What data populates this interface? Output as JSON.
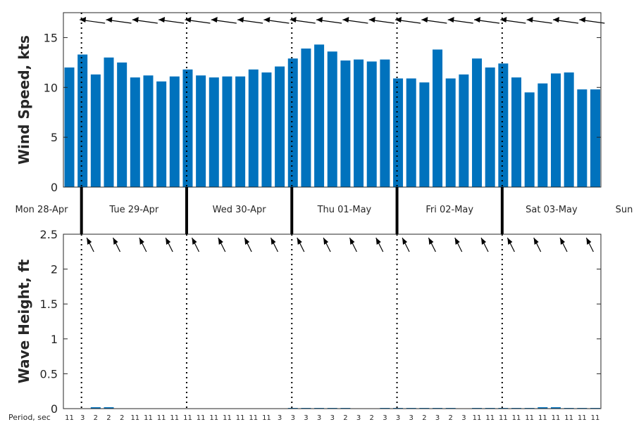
{
  "chart_data": [
    {
      "type": "bar",
      "panel": "wind",
      "ylabel": "Wind Speed, kts",
      "ylim": [
        0,
        17.5
      ],
      "yticks": [
        0,
        5,
        10,
        15
      ],
      "bar_color": "#0072BD",
      "values": [
        12.0,
        13.3,
        11.3,
        13.0,
        12.5,
        11.0,
        11.2,
        10.6,
        11.1,
        11.8,
        11.2,
        11.0,
        11.1,
        11.1,
        11.8,
        11.5,
        12.1,
        12.9,
        13.9,
        14.3,
        13.6,
        12.7,
        12.8,
        12.6,
        12.8,
        10.9,
        10.9,
        10.5,
        13.8,
        10.9,
        11.3,
        12.9,
        12.0,
        12.4,
        11.0,
        9.5,
        10.4,
        11.4,
        11.5,
        9.8,
        9.8
      ],
      "direction_arrows": "wind-direction-arrows"
    },
    {
      "type": "bar",
      "panel": "waves",
      "ylabel": "Wave Height, ft",
      "ylim": [
        0,
        2.5
      ],
      "yticks": [
        "0",
        "0.5",
        "1",
        "1.5",
        "2",
        "2.5"
      ],
      "bar_color": "#0072BD",
      "values": [
        0,
        0,
        0.02,
        0.02,
        0,
        0,
        0,
        0,
        0,
        0,
        0,
        0,
        0,
        0,
        0,
        0,
        0,
        0.01,
        0.01,
        0.01,
        0.01,
        0.01,
        0,
        0,
        0.01,
        0.01,
        0.01,
        0.01,
        0.01,
        0.01,
        0,
        0.01,
        0.01,
        0.01,
        0.01,
        0.01,
        0.02,
        0.02,
        0.01,
        0.01,
        0.01
      ],
      "period_label": "Period, sec",
      "periods": [
        "11",
        "3",
        "2",
        "2",
        "2",
        "11",
        "11",
        "11",
        "11",
        "11",
        "11",
        "11",
        "11",
        "11",
        "11",
        "11",
        "3",
        "3",
        "3",
        "3",
        "3",
        "2",
        "3",
        "2",
        "3",
        "3",
        "3",
        "2",
        "3",
        "2",
        "3",
        "11",
        "11",
        "11",
        "11",
        "11",
        "11",
        "11",
        "11",
        "11",
        "11"
      ]
    }
  ],
  "days": [
    "Mon 28-Apr",
    "Tue 29-Apr",
    "Wed 30-Apr",
    "Thu 01-May",
    "Fri 02-May",
    "Sat 03-May",
    "Sun"
  ],
  "colors": {
    "bar": "#0072BD",
    "axis": "#262626",
    "separator": "#000000"
  }
}
